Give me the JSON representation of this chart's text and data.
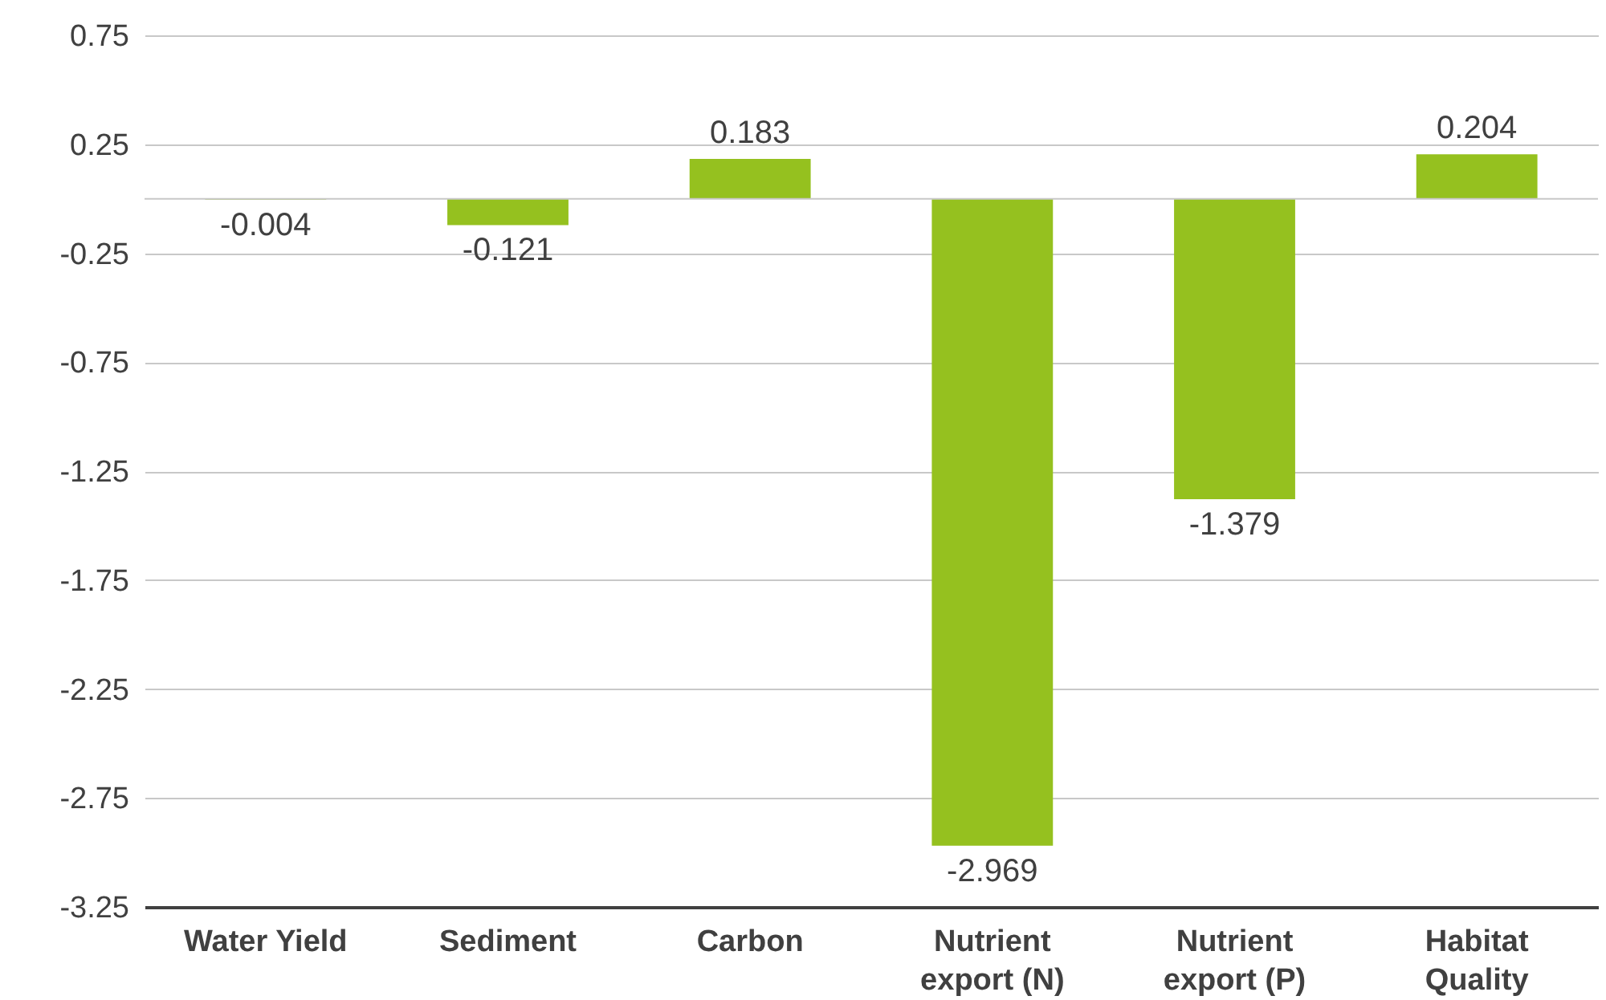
{
  "chart_data": {
    "type": "bar",
    "categories": [
      "Water Yield",
      "Sediment",
      "Carbon",
      "Nutrient export (N)",
      "Nutrient export (P)",
      "Habitat Quality"
    ],
    "values": [
      -0.004,
      -0.121,
      0.183,
      -2.969,
      -1.379,
      0.204
    ],
    "color": "#95c11f",
    "ylim": [
      -3.25,
      0.75
    ],
    "yticks": [
      -3.25,
      -2.75,
      -2.25,
      -1.75,
      -1.25,
      -0.75,
      -0.25,
      0.25,
      0.75
    ],
    "ref_lines": [
      {
        "axis": "y",
        "value": 0,
        "color": "#c8c8c8"
      }
    ],
    "grid": "y",
    "data_labels": true
  }
}
